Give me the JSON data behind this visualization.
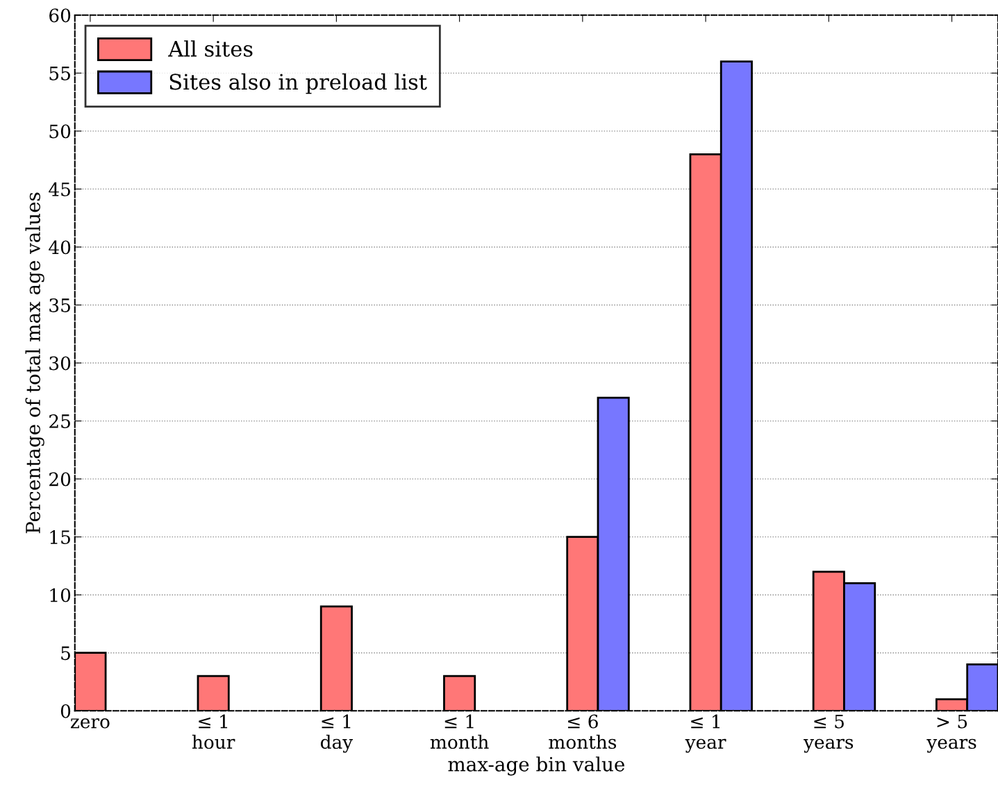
{
  "chart_data": {
    "type": "bar",
    "xlabel": "max-age bin value",
    "ylabel": "Percentage of total max age values",
    "categories": [
      "zero",
      "≤ 1\nhour",
      "≤ 1\nday",
      "≤ 1\nmonth",
      "≤ 6\nmonths",
      "≤ 1\nyear",
      "≤ 5\nyears",
      "> 5\nyears"
    ],
    "series": [
      {
        "name": "All sites",
        "color": "#ff7777",
        "values": [
          5,
          3,
          9,
          3,
          15,
          48,
          12,
          1
        ]
      },
      {
        "name": "Sites also in preload list",
        "color": "#7777ff",
        "values": [
          null,
          null,
          null,
          null,
          27,
          56,
          11,
          4
        ]
      }
    ],
    "ylim": [
      0,
      60
    ],
    "yticks": [
      0,
      5,
      10,
      15,
      20,
      25,
      30,
      35,
      40,
      45,
      50,
      55,
      60
    ],
    "grid": "y",
    "legend": "top left"
  }
}
